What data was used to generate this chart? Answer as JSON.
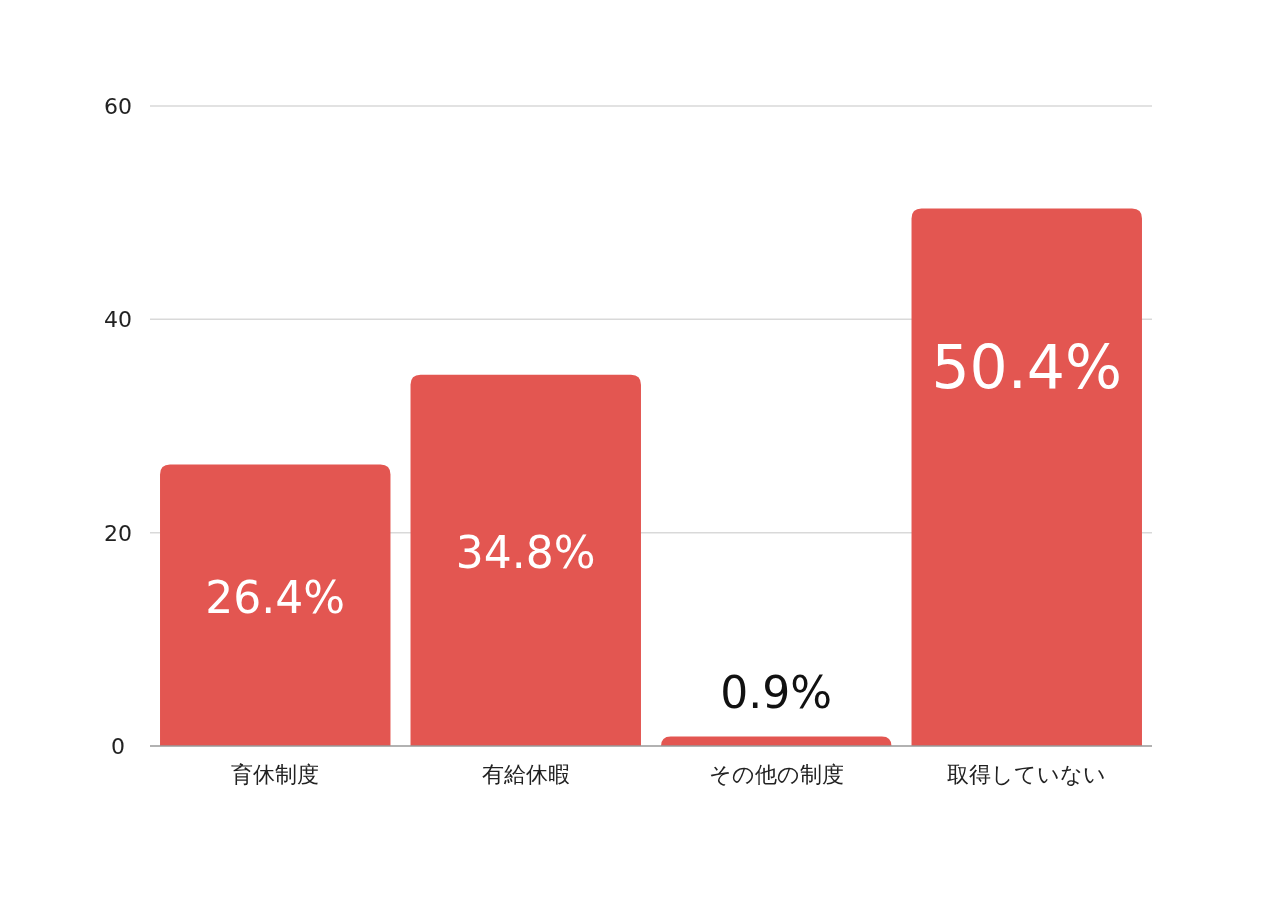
{
  "chart_data": {
    "type": "bar",
    "categories": [
      "育休制度",
      "有給休暇",
      "その他の制度",
      "取得していない"
    ],
    "values": [
      26.4,
      34.8,
      0.9,
      50.4
    ],
    "value_labels": [
      "26.4%",
      "34.8%",
      "0.9%",
      "50.4%"
    ],
    "color": "#e35651",
    "ylim": [
      0,
      60
    ],
    "yticks": [
      0,
      20,
      40,
      60
    ],
    "grid": "y"
  }
}
